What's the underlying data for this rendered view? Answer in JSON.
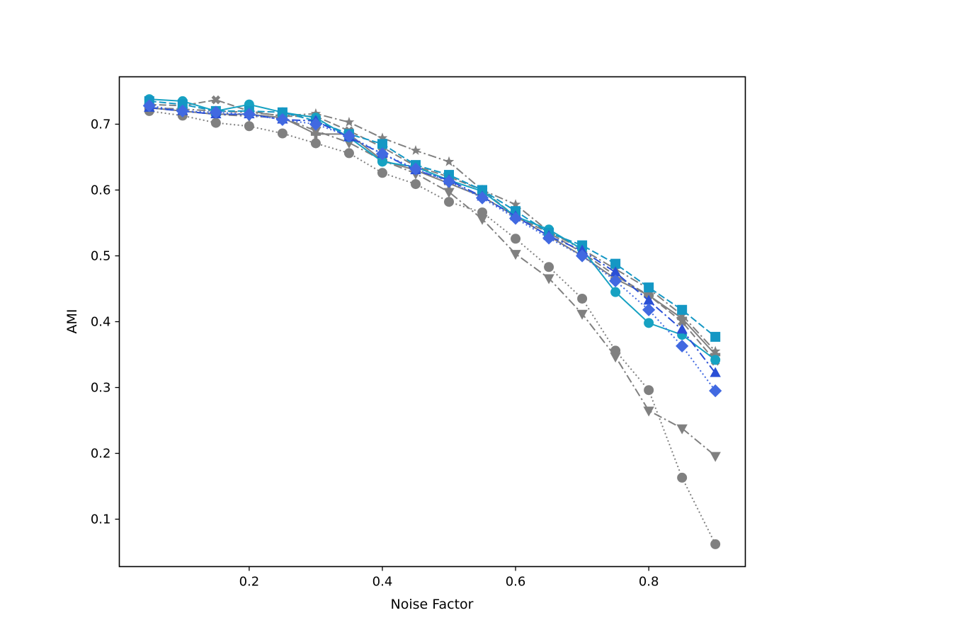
{
  "chart_data": {
    "type": "line",
    "title": "",
    "xlabel": "Noise Factor",
    "ylabel": "AMI",
    "xlim": [
      0.005,
      0.945
    ],
    "ylim": [
      0.028,
      0.772
    ],
    "xticks": [
      0.2,
      0.4,
      0.6,
      0.8
    ],
    "xtick_labels": [
      "0.2",
      "0.4",
      "0.6",
      "0.8"
    ],
    "yticks": [
      0.1,
      0.2,
      0.3,
      0.4,
      0.5,
      0.6,
      0.7
    ],
    "ytick_labels": [
      "0.1",
      "0.2",
      "0.3",
      "0.4",
      "0.5",
      "0.6",
      "0.7"
    ],
    "grid": false,
    "legend": null,
    "x": [
      0.05,
      0.1,
      0.15,
      0.2,
      0.25,
      0.3,
      0.35,
      0.4,
      0.45,
      0.5,
      0.55,
      0.6,
      0.65,
      0.7,
      0.75,
      0.8,
      0.85,
      0.9
    ],
    "series": [
      {
        "name": "gray-dotted-circle",
        "color": "#808080",
        "linestyle": "dotted",
        "marker": "circle",
        "values": [
          0.72,
          0.713,
          0.702,
          0.697,
          0.686,
          0.671,
          0.656,
          0.626,
          0.609,
          0.582,
          0.566,
          0.526,
          0.483,
          0.435,
          0.356,
          0.296,
          0.163,
          0.062
        ]
      },
      {
        "name": "gray-dashdot-triangle-down",
        "color": "#808080",
        "linestyle": "dashdot",
        "marker": "triangle-down",
        "values": [
          0.725,
          0.72,
          0.715,
          0.712,
          0.71,
          0.69,
          0.672,
          0.645,
          0.625,
          0.597,
          0.556,
          0.503,
          0.466,
          0.412,
          0.347,
          0.265,
          0.238,
          0.196
        ]
      },
      {
        "name": "gray-dashdot-star",
        "color": "#808080",
        "linestyle": "dashdot",
        "marker": "star",
        "values": [
          0.725,
          0.723,
          0.72,
          0.718,
          0.713,
          0.716,
          0.703,
          0.679,
          0.66,
          0.643,
          0.6,
          0.578,
          0.537,
          0.51,
          0.48,
          0.45,
          0.41,
          0.355
        ]
      },
      {
        "name": "gray-dashed-x",
        "color": "#808080",
        "linestyle": "dashed",
        "marker": "x",
        "values": [
          0.73,
          0.728,
          0.737,
          0.72,
          0.712,
          0.712,
          0.69,
          0.665,
          0.636,
          0.62,
          0.6,
          0.56,
          0.535,
          0.505,
          0.47,
          0.44,
          0.4,
          0.34
        ]
      },
      {
        "name": "gray-solid-plus",
        "color": "#808080",
        "linestyle": "solid",
        "marker": "plus",
        "values": [
          0.725,
          0.72,
          0.715,
          0.715,
          0.71,
          0.685,
          0.685,
          0.645,
          0.63,
          0.61,
          0.59,
          0.56,
          0.53,
          0.5,
          0.465,
          0.44,
          0.405,
          0.35
        ]
      },
      {
        "name": "cyan-solid-circle",
        "color": "#17a2c2",
        "linestyle": "solid",
        "marker": "circle",
        "values": [
          0.738,
          0.735,
          0.72,
          0.73,
          0.718,
          0.71,
          0.68,
          0.643,
          0.635,
          0.615,
          0.598,
          0.56,
          0.54,
          0.51,
          0.445,
          0.398,
          0.38,
          0.342
        ]
      },
      {
        "name": "teal-dashed-square",
        "color": "#1497c4",
        "linestyle": "dashed",
        "marker": "square",
        "values": [
          0.735,
          0.73,
          0.72,
          0.72,
          0.718,
          0.705,
          0.685,
          0.67,
          0.638,
          0.623,
          0.6,
          0.568,
          0.535,
          0.516,
          0.488,
          0.452,
          0.418,
          0.377
        ]
      },
      {
        "name": "blue-dashdot-triangle-up",
        "color": "#2a4fd6",
        "linestyle": "dashdot",
        "marker": "triangle-up",
        "values": [
          0.725,
          0.72,
          0.715,
          0.715,
          0.707,
          0.705,
          0.68,
          0.655,
          0.63,
          0.615,
          0.59,
          0.56,
          0.53,
          0.508,
          0.475,
          0.432,
          0.388,
          0.322
        ]
      },
      {
        "name": "royalblue-dotted-diamond",
        "color": "#4169e1",
        "linestyle": "dotted",
        "marker": "diamond",
        "values": [
          0.728,
          0.72,
          0.718,
          0.715,
          0.707,
          0.7,
          0.682,
          0.655,
          0.632,
          0.613,
          0.588,
          0.557,
          0.527,
          0.5,
          0.462,
          0.418,
          0.363,
          0.295
        ]
      }
    ]
  }
}
